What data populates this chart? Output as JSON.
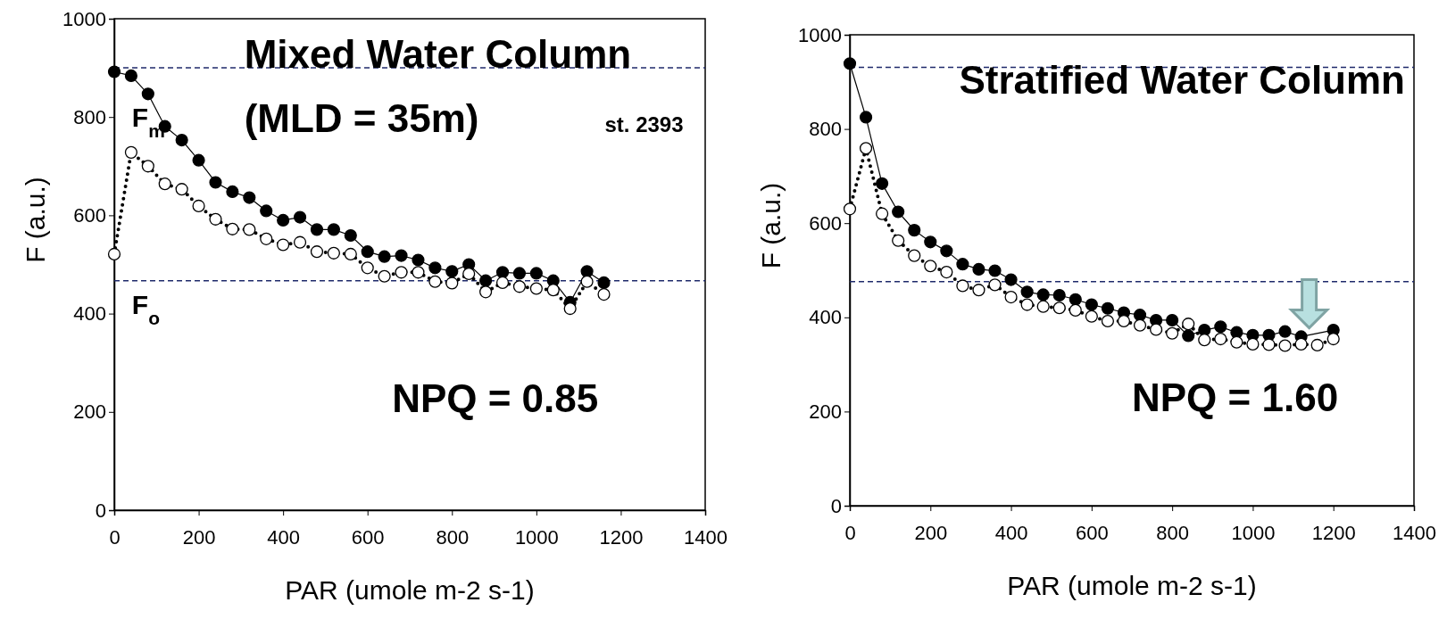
{
  "chart_data": [
    {
      "type": "line",
      "title": "Mixed Water Column",
      "subtitle": "(MLD = 35m)",
      "xlabel": "PAR (umole m-2 s-1)",
      "ylabel": "F (a.u.)",
      "xlim": [
        0,
        1400
      ],
      "xticks": [
        0,
        200,
        400,
        600,
        800,
        1000,
        1200,
        1400
      ],
      "ylim": [
        0,
        1000
      ],
      "yticks": [
        0,
        200,
        400,
        600,
        800,
        1000
      ],
      "marker": "circle",
      "grid": false,
      "annotations": [
        "st. 2393",
        "NPQ = 0.85",
        "F$_{m}$",
        "F$_{o}$"
      ],
      "ref_lines": [
        {
          "axis": "y",
          "value": 900,
          "color": "#1f2a6b",
          "line_style": "dashed"
        },
        {
          "axis": "y",
          "value": 467,
          "color": "#1f2a6b",
          "line_style": "dashed"
        }
      ],
      "x": [
        0,
        40,
        80,
        120,
        160,
        200,
        240,
        280,
        320,
        360,
        400,
        440,
        480,
        520,
        560,
        600,
        640,
        680,
        720,
        760,
        800,
        840,
        880,
        920,
        960,
        1000,
        1040,
        1080,
        1120,
        1160
      ],
      "series": [
        {
          "color": "#000000",
          "line_style": "solid",
          "values": [
            892,
            884,
            847,
            781,
            753,
            712,
            667,
            648,
            636,
            609,
            590,
            596,
            571,
            571,
            559,
            526,
            516,
            518,
            509,
            493,
            486,
            500,
            467,
            484,
            482,
            482,
            467,
            423,
            486,
            463
          ]
        },
        {
          "color": "#000000",
          "line_style": "dotted",
          "values": [
            521,
            728,
            700,
            664,
            653,
            619,
            592,
            572,
            571,
            552,
            540,
            545,
            526,
            523,
            521,
            493,
            476,
            484,
            484,
            465,
            462,
            481,
            444,
            463,
            455,
            451,
            448,
            410,
            465,
            439
          ]
        }
      ]
    },
    {
      "type": "line",
      "title": "Stratified Water Column",
      "xlabel": "PAR (umole m-2 s-1)",
      "ylabel": "F (a.u.)",
      "xlim": [
        0,
        1400
      ],
      "xticks": [
        0,
        200,
        400,
        600,
        800,
        1000,
        1200,
        1400
      ],
      "ylim": [
        0,
        1000
      ],
      "yticks": [
        0,
        200,
        400,
        600,
        800,
        1000
      ],
      "marker": "circle",
      "grid": false,
      "annotations": [
        "NPQ = 1.60"
      ],
      "ref_lines": [
        {
          "axis": "y",
          "value": 931,
          "color": "#1f2a6b",
          "line_style": "dashed"
        },
        {
          "axis": "y",
          "value": 476,
          "color": "#1f2a6b",
          "line_style": "dashed"
        }
      ],
      "series": [
        {
          "color": "#000000",
          "line_style": "solid",
          "x": [
            0,
            40,
            80,
            120,
            160,
            200,
            240,
            280,
            320,
            360,
            400,
            440,
            480,
            520,
            560,
            600,
            640,
            680,
            720,
            760,
            800,
            840,
            880,
            920,
            960,
            1000,
            1040,
            1080,
            1120,
            1200
          ],
          "values": [
            939,
            825,
            684,
            624,
            585,
            560,
            541,
            513,
            502,
            499,
            480,
            454,
            448,
            447,
            438,
            427,
            419,
            410,
            405,
            394,
            394,
            361,
            373,
            380,
            368,
            362,
            362,
            370,
            359,
            373
          ]
        },
        {
          "color": "#000000",
          "line_style": "dotted",
          "x": [
            0,
            40,
            80,
            120,
            160,
            200,
            240,
            280,
            320,
            360,
            400,
            440,
            480,
            520,
            560,
            600,
            640,
            680,
            720,
            760,
            800,
            840,
            880,
            920,
            960,
            1000,
            1040,
            1080,
            1120,
            1160,
            1200
          ],
          "values": [
            630,
            759,
            620,
            563,
            531,
            509,
            496,
            467,
            458,
            469,
            443,
            427,
            423,
            420,
            415,
            402,
            392,
            392,
            383,
            374,
            366,
            386,
            352,
            354,
            347,
            343,
            342,
            340,
            343,
            341,
            354
          ]
        }
      ]
    }
  ]
}
